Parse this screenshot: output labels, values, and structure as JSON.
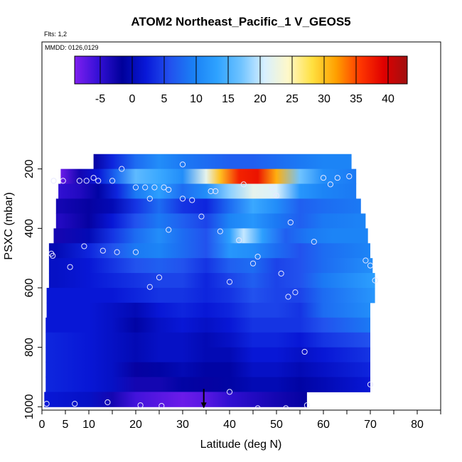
{
  "chart_data": {
    "type": "heatmap",
    "title": "ATOM2 Northeast_Pacific_1 V_GEOS5",
    "flights_note": "Flts: 1,2",
    "date_note": "MMDD: 0126,0129",
    "xlabel": "Latitude (deg N)",
    "ylabel": "PSXC (mbar)",
    "xlim": [
      0,
      85
    ],
    "ylim": [
      1000,
      50
    ],
    "y_inverted": true,
    "grid": false,
    "x_ticks": [
      0,
      5,
      10,
      20,
      30,
      40,
      50,
      60,
      70,
      80
    ],
    "x_minor_ticks": [
      15,
      25,
      35,
      45,
      55,
      65,
      75,
      85
    ],
    "y_ticks": [
      200,
      400,
      600,
      800,
      1000
    ],
    "colorbar": {
      "placement": "top",
      "range": [
        -9,
        43
      ],
      "ticks": [
        -5,
        0,
        5,
        10,
        15,
        20,
        25,
        30,
        35,
        40
      ],
      "colors": [
        "#7f1ff0",
        "#3410d6",
        "#00009a",
        "#0818d8",
        "#2250ee",
        "#1a80f5",
        "#2ea2ff",
        "#6fc3ff",
        "#d8f0ff",
        "#fff8c8",
        "#ffe040",
        "#ffa000",
        "#ff3800",
        "#e00000",
        "#a01010"
      ]
    },
    "pressure_levels": [
      175,
      225,
      275,
      325,
      375,
      425,
      475,
      525,
      575,
      625,
      675,
      725,
      775,
      825,
      875,
      925,
      975
    ],
    "rows": [
      {
        "p": 175,
        "lat": [
          11,
          15,
          20,
          25,
          30,
          35,
          40,
          45,
          50,
          55,
          60,
          66
        ],
        "v": [
          -2,
          3,
          8,
          11,
          9,
          8,
          7,
          7,
          8,
          9,
          10,
          10
        ]
      },
      {
        "p": 225,
        "lat": [
          4,
          8,
          12,
          16,
          20,
          25,
          30,
          35,
          38,
          42,
          46,
          50,
          55,
          60,
          67
        ],
        "v": [
          -8,
          -3,
          2,
          8,
          16,
          14,
          11,
          22,
          30,
          37,
          38,
          31,
          17,
          11,
          9
        ]
      },
      {
        "p": 275,
        "lat": [
          4,
          8,
          12,
          16,
          20,
          25,
          30,
          35,
          40,
          45,
          50,
          55,
          60,
          67
        ],
        "v": [
          -5,
          -4,
          -1,
          3,
          9,
          13,
          8,
          11,
          18,
          22,
          21,
          12,
          10,
          9
        ]
      },
      {
        "p": 325,
        "lat": [
          4,
          10,
          15,
          20,
          25,
          30,
          35,
          40,
          45,
          50,
          55,
          60,
          68
        ],
        "v": [
          -3,
          -2,
          0,
          4,
          8,
          4,
          3,
          8,
          14,
          11,
          7,
          8,
          9
        ]
      },
      {
        "p": 375,
        "lat": [
          4,
          10,
          15,
          20,
          25,
          30,
          35,
          40,
          45,
          50,
          55,
          60,
          69
        ],
        "v": [
          -4,
          -2,
          2,
          6,
          9,
          7,
          5,
          10,
          12,
          9,
          7,
          9,
          10
        ]
      },
      {
        "p": 425,
        "lat": [
          4,
          10,
          15,
          20,
          25,
          30,
          35,
          40,
          43,
          47,
          52,
          57,
          62,
          69
        ],
        "v": [
          -3,
          0,
          4,
          8,
          11,
          8,
          6,
          13,
          20,
          13,
          7,
          9,
          10,
          10
        ]
      },
      {
        "p": 475,
        "lat": [
          3,
          10,
          15,
          20,
          25,
          30,
          35,
          40,
          45,
          50,
          55,
          60,
          70
        ],
        "v": [
          0,
          3,
          6,
          9,
          10,
          8,
          6,
          12,
          11,
          8,
          6,
          8,
          10
        ]
      },
      {
        "p": 525,
        "lat": [
          3,
          10,
          15,
          20,
          25,
          30,
          35,
          40,
          45,
          50,
          55,
          60,
          70
        ],
        "v": [
          1,
          2,
          4,
          6,
          7,
          6,
          4,
          7,
          8,
          5,
          6,
          8,
          11
        ]
      },
      {
        "p": 575,
        "lat": [
          3,
          10,
          15,
          20,
          25,
          30,
          35,
          40,
          45,
          50,
          55,
          60,
          71
        ],
        "v": [
          1,
          2,
          3,
          4,
          5,
          5,
          3,
          5,
          7,
          5,
          6,
          9,
          13
        ]
      },
      {
        "p": 625,
        "lat": [
          3,
          10,
          15,
          20,
          25,
          30,
          35,
          40,
          45,
          50,
          55,
          60,
          71
        ],
        "v": [
          2,
          2,
          2,
          3,
          4,
          4,
          3,
          4,
          6,
          5,
          5,
          8,
          12
        ]
      },
      {
        "p": 675,
        "lat": [
          3,
          10,
          15,
          20,
          25,
          30,
          35,
          40,
          45,
          50,
          55,
          60,
          70
        ],
        "v": [
          2,
          2,
          1,
          0,
          2,
          3,
          2,
          3,
          5,
          5,
          4,
          8,
          11
        ]
      },
      {
        "p": 725,
        "lat": [
          3,
          10,
          15,
          20,
          25,
          30,
          35,
          40,
          45,
          50,
          55,
          60,
          70
        ],
        "v": [
          2,
          2,
          1,
          -1,
          1,
          2,
          1,
          2,
          4,
          4,
          4,
          6,
          9
        ]
      },
      {
        "p": 775,
        "lat": [
          2,
          10,
          15,
          20,
          25,
          30,
          35,
          40,
          45,
          50,
          55,
          60,
          70
        ],
        "v": [
          3,
          2,
          1,
          0,
          1,
          1,
          0,
          1,
          3,
          3,
          2,
          4,
          6
        ]
      },
      {
        "p": 825,
        "lat": [
          2,
          10,
          15,
          20,
          25,
          30,
          35,
          40,
          45,
          50,
          55,
          60,
          70
        ],
        "v": [
          3,
          2,
          1,
          0,
          1,
          1,
          0,
          0,
          2,
          2,
          1,
          2,
          4
        ]
      },
      {
        "p": 875,
        "lat": [
          2,
          10,
          15,
          20,
          25,
          30,
          35,
          40,
          45,
          50,
          55,
          60,
          70
        ],
        "v": [
          3,
          2,
          1,
          -2,
          -1,
          0,
          -1,
          -1,
          1,
          1,
          0,
          1,
          3
        ]
      },
      {
        "p": 925,
        "lat": [
          2,
          10,
          15,
          20,
          25,
          30,
          35,
          40,
          45,
          50,
          55,
          60,
          70
        ],
        "v": [
          3,
          2,
          1,
          -3,
          -3,
          -1,
          -2,
          -1,
          0,
          0,
          -1,
          0,
          2
        ]
      },
      {
        "p": 975,
        "lat": [
          1,
          10,
          15,
          20,
          25,
          30,
          35,
          40,
          45,
          50,
          56
        ],
        "v": [
          2,
          1,
          -3,
          -6,
          -7,
          -8,
          -7,
          -5,
          -4,
          -3,
          -2
        ]
      }
    ],
    "data_extent": {
      "175": [
        11,
        66
      ],
      "225": [
        4,
        67
      ],
      "275": [
        3.5,
        67
      ],
      "325": [
        3,
        68
      ],
      "375": [
        3,
        69
      ],
      "425": [
        2.5,
        69.5
      ],
      "475": [
        1.5,
        70
      ],
      "525": [
        1.5,
        70.5
      ],
      "575": [
        1.5,
        71
      ],
      "625": [
        1,
        71
      ],
      "675": [
        1,
        70
      ],
      "725": [
        0.8,
        70
      ],
      "775": [
        0.8,
        70
      ],
      "825": [
        0.8,
        70
      ],
      "875": [
        0.8,
        70
      ],
      "925": [
        0.8,
        70
      ],
      "975": [
        0.5,
        56.5
      ]
    },
    "samples": [
      {
        "lat": 9.5,
        "p": 240
      },
      {
        "lat": 4.5,
        "p": 240
      },
      {
        "lat": 2.5,
        "p": 240
      },
      {
        "lat": 8,
        "p": 240
      },
      {
        "lat": 12,
        "p": 240
      },
      {
        "lat": 15,
        "p": 240
      },
      {
        "lat": 17,
        "p": 200
      },
      {
        "lat": 11,
        "p": 230
      },
      {
        "lat": 20,
        "p": 262
      },
      {
        "lat": 22,
        "p": 262
      },
      {
        "lat": 24,
        "p": 262
      },
      {
        "lat": 26,
        "p": 262
      },
      {
        "lat": 27,
        "p": 270
      },
      {
        "lat": 23,
        "p": 300
      },
      {
        "lat": 30,
        "p": 185
      },
      {
        "lat": 30,
        "p": 300
      },
      {
        "lat": 32,
        "p": 305
      },
      {
        "lat": 36,
        "p": 275
      },
      {
        "lat": 37,
        "p": 275
      },
      {
        "lat": 43,
        "p": 252
      },
      {
        "lat": 49,
        "p": 262
      },
      {
        "lat": 50,
        "p": 290
      },
      {
        "lat": 60,
        "p": 230
      },
      {
        "lat": 61.5,
        "p": 252
      },
      {
        "lat": 63,
        "p": 230
      },
      {
        "lat": 65.5,
        "p": 225
      },
      {
        "lat": 34,
        "p": 360
      },
      {
        "lat": 27,
        "p": 405
      },
      {
        "lat": 38,
        "p": 410
      },
      {
        "lat": 42,
        "p": 440
      },
      {
        "lat": 53,
        "p": 380
      },
      {
        "lat": 58,
        "p": 445
      },
      {
        "lat": 9,
        "p": 460
      },
      {
        "lat": 13,
        "p": 475
      },
      {
        "lat": 16,
        "p": 480
      },
      {
        "lat": 20,
        "p": 480
      },
      {
        "lat": 2,
        "p": 485
      },
      {
        "lat": 2.3,
        "p": 492
      },
      {
        "lat": 6,
        "p": 530
      },
      {
        "lat": 46,
        "p": 495
      },
      {
        "lat": 45,
        "p": 518
      },
      {
        "lat": 69,
        "p": 508
      },
      {
        "lat": 70,
        "p": 525
      },
      {
        "lat": 51,
        "p": 552
      },
      {
        "lat": 25,
        "p": 565
      },
      {
        "lat": 23,
        "p": 597
      },
      {
        "lat": 40,
        "p": 580
      },
      {
        "lat": 71,
        "p": 575
      },
      {
        "lat": 54,
        "p": 615
      },
      {
        "lat": 52.5,
        "p": 630
      },
      {
        "lat": 56,
        "p": 815
      },
      {
        "lat": 70,
        "p": 925
      },
      {
        "lat": 40,
        "p": 950
      },
      {
        "lat": 14,
        "p": 985
      },
      {
        "lat": 7,
        "p": 990
      },
      {
        "lat": 1,
        "p": 990
      },
      {
        "lat": 21,
        "p": 995
      },
      {
        "lat": 25.5,
        "p": 997
      },
      {
        "lat": 46,
        "p": 1005
      },
      {
        "lat": 52,
        "p": 1005
      },
      {
        "lat": 56.5,
        "p": 995
      }
    ],
    "arrow_marker": {
      "lat": 34.5,
      "p": 1000
    }
  }
}
